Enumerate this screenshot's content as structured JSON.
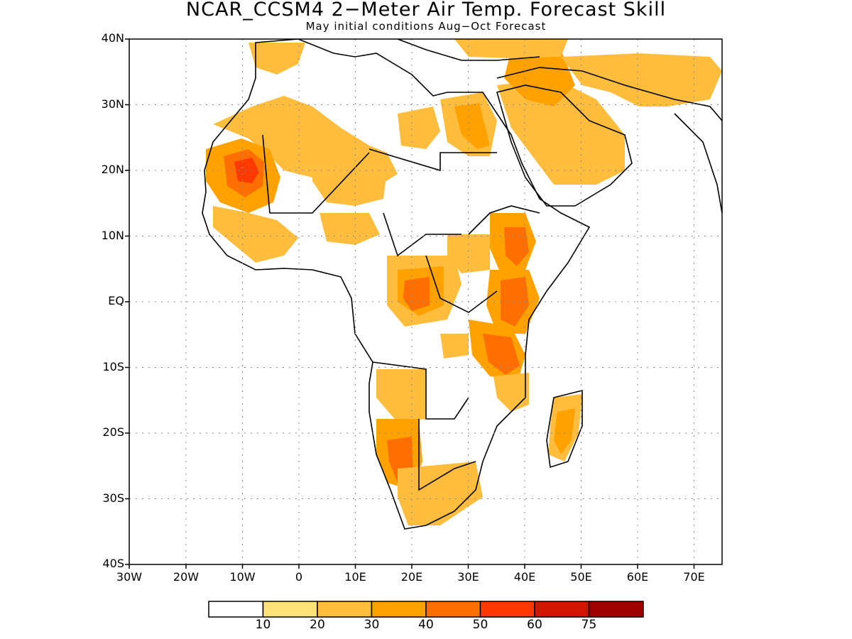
{
  "title": "NCAR_CCSM4 2−Meter Air Temp. Forecast Skill",
  "subtitle": "May initial conditions  Aug−Oct Forecast",
  "lat_ticks": [
    "40N",
    "30N",
    "20N",
    "10N",
    "EQ",
    "10S",
    "20S",
    "30S",
    "40S"
  ],
  "lon_ticks": [
    "30W",
    "20W",
    "10W",
    "0",
    "10E",
    "20E",
    "30E",
    "40E",
    "50E",
    "60E",
    "70E"
  ],
  "colorbar": {
    "colors": [
      "#ffffff",
      "#ffe27a",
      "#ffbd3d",
      "#ffa200",
      "#ff6e00",
      "#ff3a00",
      "#d01500",
      "#a00000"
    ],
    "boundaries": [
      "10",
      "20",
      "30",
      "40",
      "50",
      "60",
      "75"
    ]
  },
  "colors": {
    "ocean": "#ffffff",
    "coast": "#000000"
  }
}
